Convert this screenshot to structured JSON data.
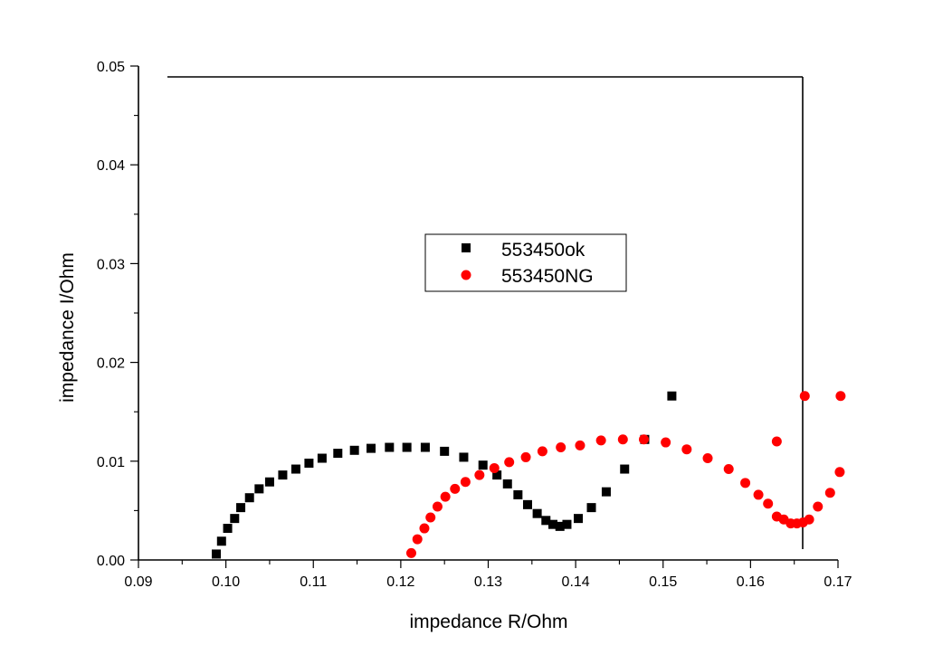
{
  "chart_data": {
    "type": "scatter",
    "title": "",
    "xlabel": "impedance R/Ohm",
    "ylabel": "impedance I/Ohm",
    "xlim": [
      0.09,
      0.17
    ],
    "ylim": [
      0.0,
      0.05
    ],
    "x_ticks": [
      0.09,
      0.1,
      0.11,
      0.12,
      0.13,
      0.14,
      0.15,
      0.16,
      0.17
    ],
    "y_ticks": [
      0.0,
      0.01,
      0.02,
      0.03,
      0.04,
      0.05
    ],
    "x_tick_labels": [
      "0.09",
      "0.10",
      "0.11",
      "0.12",
      "0.13",
      "0.14",
      "0.15",
      "0.16",
      "0.17"
    ],
    "y_tick_labels": [
      "0.00",
      "0.01",
      "0.02",
      "0.03",
      "0.04",
      "0.05"
    ],
    "grid": false,
    "legend_position": "center",
    "series": [
      {
        "name": "553450ok",
        "marker": "square",
        "color": "#000000",
        "x": [
          0.0989,
          0.0995,
          0.1002,
          0.101,
          0.1017,
          0.1027,
          0.1038,
          0.105,
          0.1065,
          0.108,
          0.1095,
          0.111,
          0.1128,
          0.1147,
          0.1166,
          0.1187,
          0.1207,
          0.1228,
          0.125,
          0.1272,
          0.1294,
          0.131,
          0.1322,
          0.1334,
          0.1345,
          0.1356,
          0.1366,
          0.1374,
          0.1382,
          0.139,
          0.1403,
          0.1418,
          0.1435,
          0.1456,
          0.1479,
          0.151
        ],
        "y": [
          0.0006,
          0.0019,
          0.0032,
          0.0042,
          0.0053,
          0.0063,
          0.0072,
          0.0079,
          0.0086,
          0.0092,
          0.0098,
          0.0103,
          0.0108,
          0.0111,
          0.0113,
          0.0114,
          0.0114,
          0.0114,
          0.011,
          0.0104,
          0.0096,
          0.0086,
          0.0077,
          0.0066,
          0.0056,
          0.0047,
          0.004,
          0.0036,
          0.0034,
          0.0036,
          0.0042,
          0.0053,
          0.0069,
          0.0092,
          0.0122,
          0.0166
        ]
      },
      {
        "name": "553450NG",
        "marker": "circle",
        "color": "#ff0000",
        "x": [
          0.1212,
          0.1219,
          0.1227,
          0.1234,
          0.1242,
          0.1251,
          0.1262,
          0.1274,
          0.129,
          0.1307,
          0.1324,
          0.1343,
          0.1362,
          0.1383,
          0.1405,
          0.1429,
          0.1454,
          0.1478,
          0.1503,
          0.1527,
          0.1551,
          0.1575,
          0.1594,
          0.1609,
          0.162,
          0.163,
          0.1638,
          0.1646,
          0.1653,
          0.166,
          0.1667,
          0.1677,
          0.1691,
          0.1702,
          0.163,
          0.1662,
          0.1703
        ],
        "y": [
          0.0007,
          0.0021,
          0.0032,
          0.0043,
          0.0054,
          0.0064,
          0.0072,
          0.0079,
          0.0086,
          0.0093,
          0.0099,
          0.0104,
          0.011,
          0.0114,
          0.0116,
          0.0121,
          0.0122,
          0.0122,
          0.0119,
          0.0112,
          0.0103,
          0.0092,
          0.0078,
          0.0066,
          0.0057,
          0.0044,
          0.0041,
          0.0037,
          0.0037,
          0.0038,
          0.0041,
          0.0054,
          0.0068,
          0.0089,
          0.012,
          0.0166,
          0.0166
        ]
      }
    ]
  }
}
